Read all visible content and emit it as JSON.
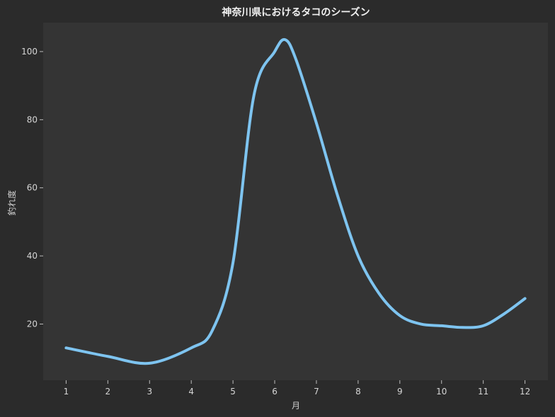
{
  "chart_data": {
    "type": "line",
    "title": "神奈川県におけるタコのシーズン",
    "xlabel": "月",
    "ylabel": "釣れ度",
    "x": [
      1,
      2,
      3,
      4,
      4.5,
      5,
      5.5,
      6,
      6.25,
      6.5,
      7,
      7.5,
      8,
      8.5,
      9,
      9.5,
      10,
      10.5,
      11,
      11.5,
      12
    ],
    "x_ticks": [
      "1",
      "2",
      "3",
      "4",
      "5",
      "6",
      "7",
      "8",
      "9",
      "10",
      "11",
      "12"
    ],
    "y_ticks": [
      "20",
      "40",
      "60",
      "80",
      "100"
    ],
    "xlim": [
      0.45,
      12.55
    ],
    "ylim": [
      3.5,
      108.5
    ],
    "series": [
      {
        "values": [
          13,
          10.5,
          8.5,
          13,
          18,
          38,
          87,
          100,
          103.5,
          98,
          79,
          58,
          40,
          29,
          22.5,
          20,
          19.5,
          19,
          19.5,
          23,
          27.5
        ],
        "color": "#7ec4f0"
      }
    ],
    "grid": false,
    "legend": "none",
    "colors": {
      "background": "#2b2b2b",
      "plot_background": "#343434",
      "line": "#7ec4f0",
      "text": "#d6d6d6"
    }
  }
}
